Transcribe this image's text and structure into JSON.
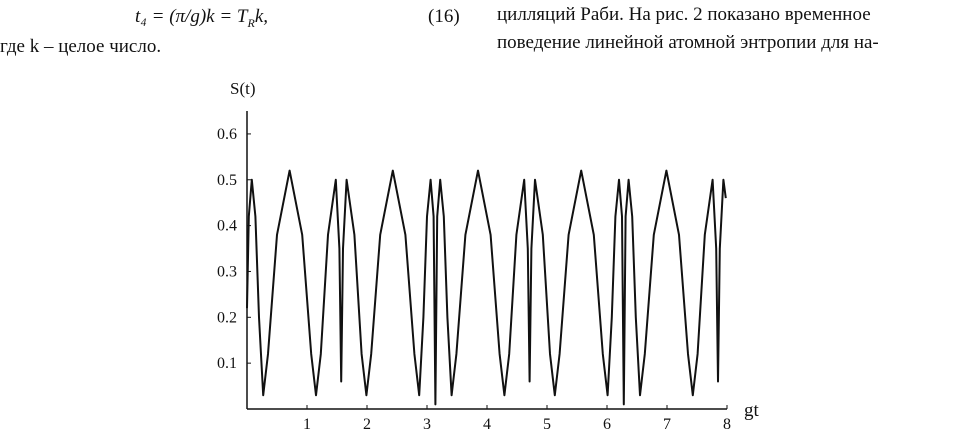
{
  "left_column": {
    "equation": {
      "lhs": "t₄ = (π/g)k = T",
      "subscript": "R",
      "rest": "k,",
      "number": "(16)"
    },
    "line": "где  k  – целое число."
  },
  "right_column": {
    "lines": [
      "цилляций Раби. На рис. 2 показано временное",
      "поведение линейной атомной энтропии для на-"
    ]
  },
  "chart_data": {
    "type": "line",
    "y_label": "S(t)",
    "x_label": "gt",
    "xlim": [
      0,
      8
    ],
    "ylim": [
      0,
      0.65
    ],
    "xticks": [
      1,
      2,
      3,
      4,
      5,
      6,
      7,
      8
    ],
    "yticks": [
      0.1,
      0.2,
      0.3,
      0.4,
      0.5,
      0.6
    ],
    "color": "#111111",
    "x": [
      0,
      0.03,
      0.08,
      0.14,
      0.2,
      0.27,
      0.35,
      0.5,
      0.71,
      0.92,
      1.07,
      1.15,
      1.23,
      1.35,
      1.48,
      1.54,
      1.57,
      1.6,
      1.66,
      1.79,
      1.91,
      1.99,
      2.07,
      2.22,
      2.43,
      2.64,
      2.79,
      2.87,
      2.94,
      3.0,
      3.06,
      3.11,
      3.14,
      3.17,
      3.22,
      3.28,
      3.34,
      3.41,
      3.49,
      3.64,
      3.85,
      4.06,
      4.21,
      4.29,
      4.37,
      4.49,
      4.62,
      4.68,
      4.71,
      4.74,
      4.8,
      4.93,
      5.05,
      5.13,
      5.21,
      5.36,
      5.57,
      5.78,
      5.93,
      6.01,
      6.08,
      6.14,
      6.2,
      6.25,
      6.28,
      6.31,
      6.36,
      6.42,
      6.48,
      6.55,
      6.63,
      6.78,
      6.99,
      7.2,
      7.35,
      7.43,
      7.51,
      7.63,
      7.76,
      7.82,
      7.85,
      7.88,
      7.94,
      7.98
    ],
    "values": [
      0.22,
      0.42,
      0.5,
      0.42,
      0.2,
      0.03,
      0.12,
      0.38,
      0.52,
      0.38,
      0.12,
      0.03,
      0.12,
      0.38,
      0.5,
      0.35,
      0.06,
      0.35,
      0.5,
      0.38,
      0.12,
      0.03,
      0.12,
      0.38,
      0.52,
      0.38,
      0.12,
      0.03,
      0.2,
      0.42,
      0.5,
      0.42,
      0.01,
      0.42,
      0.5,
      0.42,
      0.2,
      0.03,
      0.12,
      0.38,
      0.52,
      0.38,
      0.12,
      0.03,
      0.12,
      0.38,
      0.5,
      0.35,
      0.06,
      0.35,
      0.5,
      0.38,
      0.12,
      0.03,
      0.12,
      0.38,
      0.52,
      0.38,
      0.12,
      0.03,
      0.2,
      0.42,
      0.5,
      0.42,
      0.01,
      0.42,
      0.5,
      0.42,
      0.2,
      0.03,
      0.12,
      0.38,
      0.52,
      0.38,
      0.12,
      0.03,
      0.12,
      0.38,
      0.5,
      0.35,
      0.06,
      0.35,
      0.5,
      0.46
    ]
  }
}
